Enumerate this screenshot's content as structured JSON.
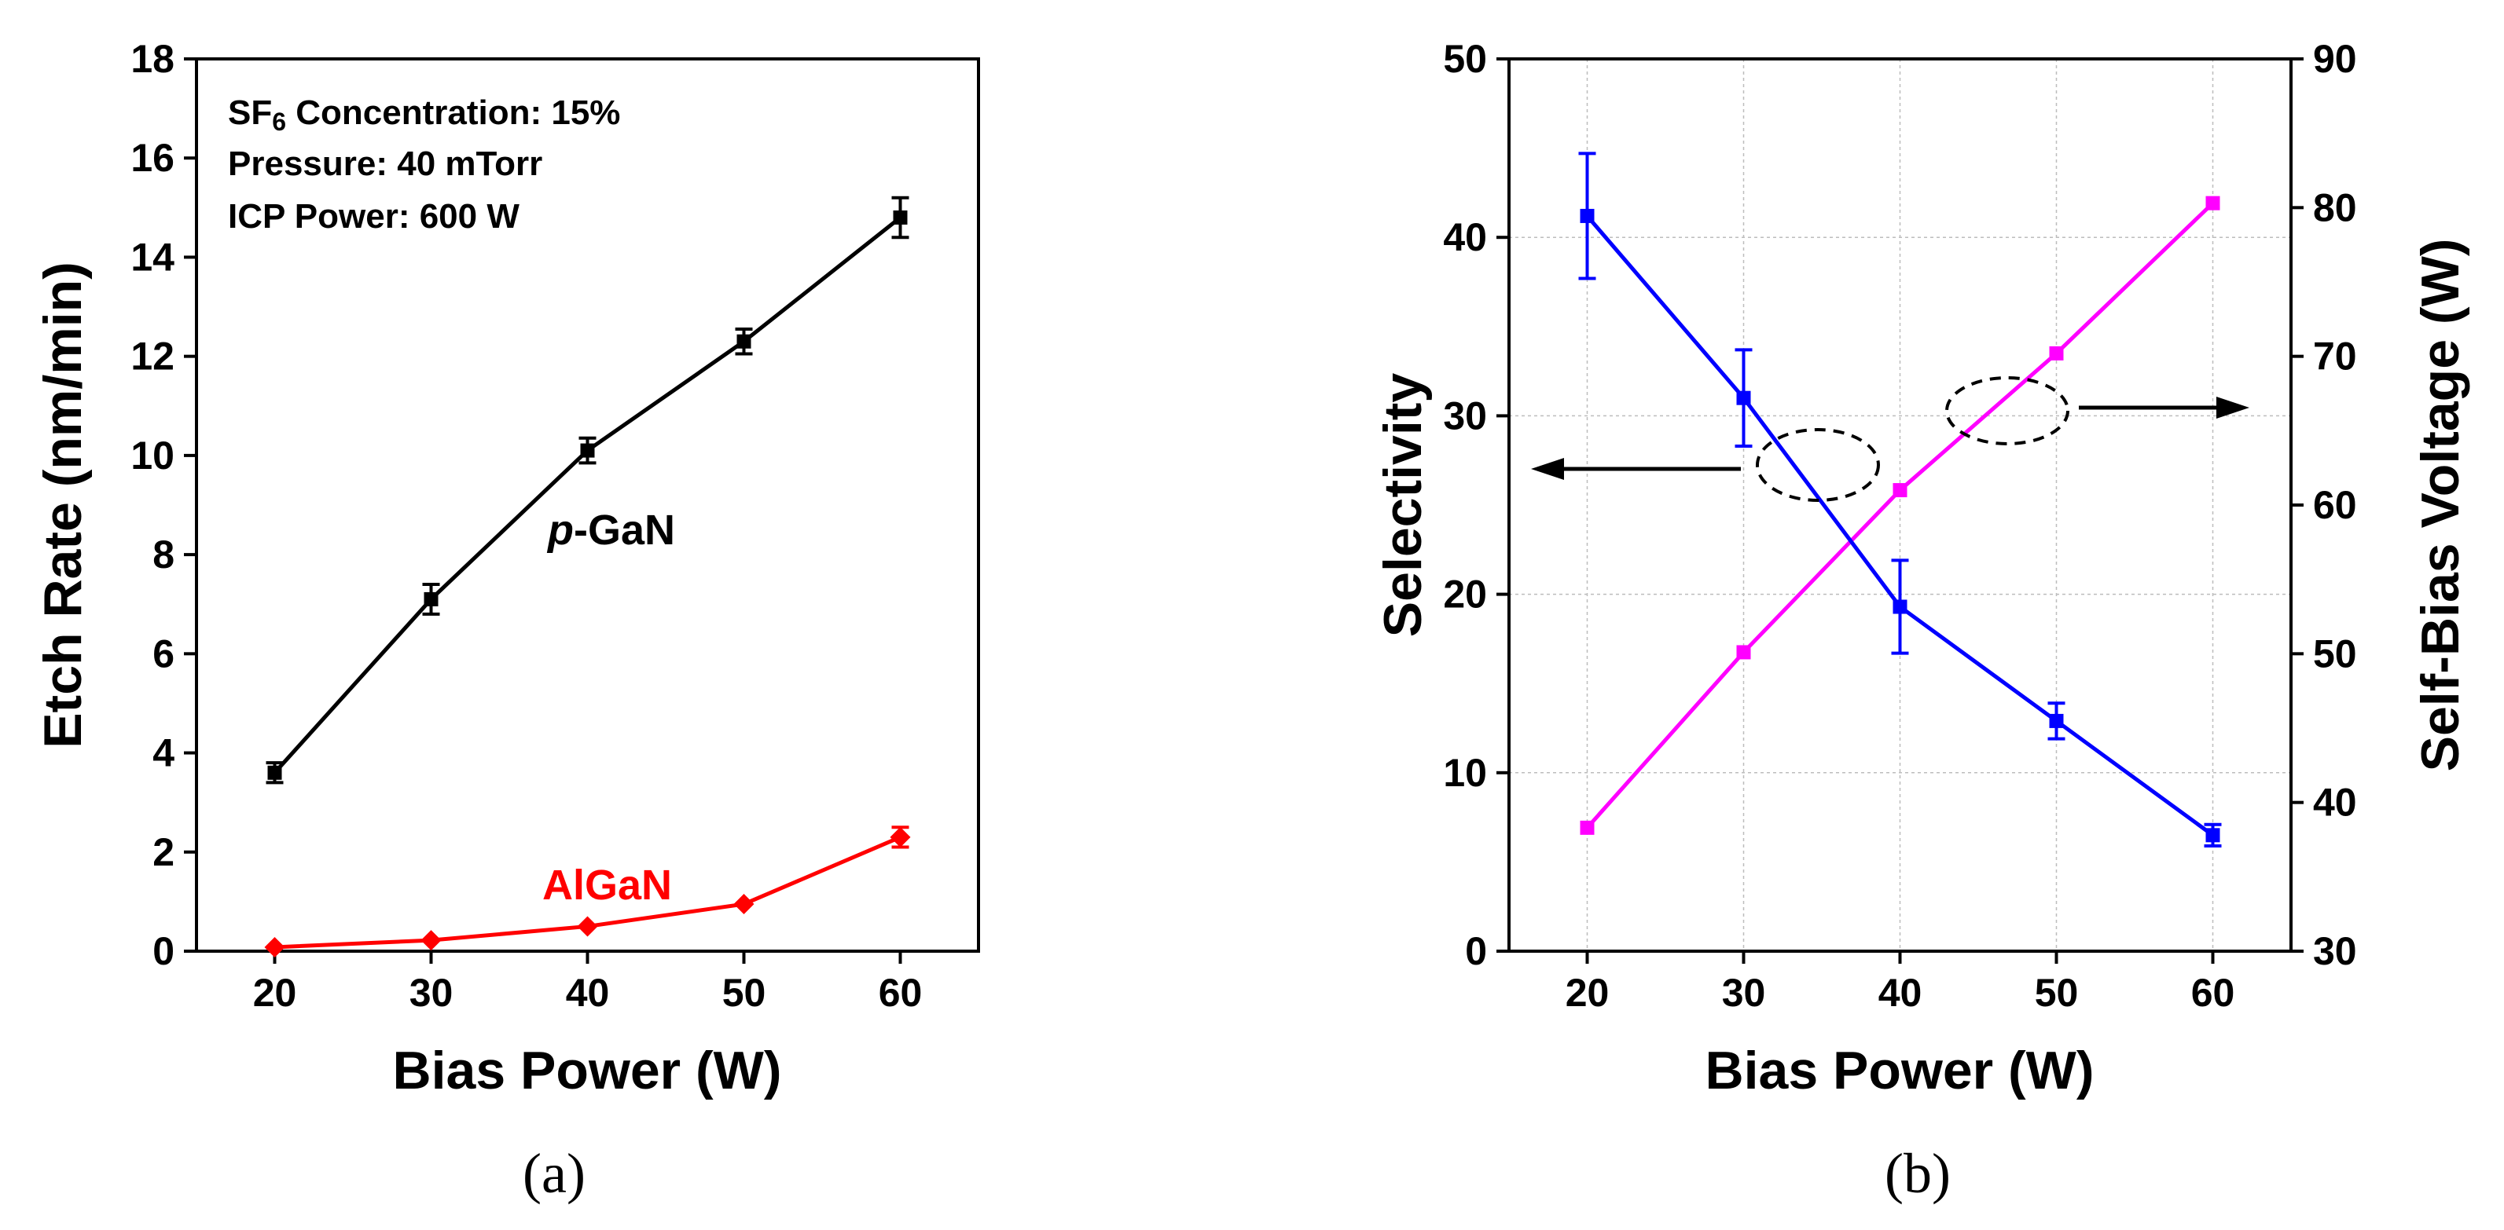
{
  "chart_data": [
    {
      "type": "line",
      "panel_label": "(a)",
      "xlabel": "Bias Power (W)",
      "ylabel": "Etch Rate (nm/min)",
      "xlim": [
        15,
        65
      ],
      "ylim": [
        0,
        18
      ],
      "xticks": [
        20,
        30,
        40,
        50,
        60
      ],
      "yticks": [
        0,
        2,
        4,
        6,
        8,
        10,
        12,
        14,
        16,
        18
      ],
      "grid": false,
      "annotations": {
        "sf6_prefix": "SF",
        "sf6_sub": "6",
        "sf6_suffix": " Concentration: 15%",
        "pressure": "Pressure: 40 mTorr",
        "icp": "ICP Power: 600 W"
      },
      "x": [
        20,
        30,
        40,
        50,
        60
      ],
      "series": [
        {
          "name_italic": "p",
          "name_rest": "-GaN",
          "color": "#000000",
          "marker": "square",
          "values": [
            3.6,
            7.1,
            10.1,
            12.3,
            14.8
          ],
          "errors": [
            0.2,
            0.3,
            0.25,
            0.25,
            0.4
          ]
        },
        {
          "name": "AlGaN",
          "color": "#ff0000",
          "marker": "diamond",
          "values": [
            0.08,
            0.22,
            0.5,
            0.95,
            2.3
          ],
          "errors": [
            0,
            0,
            0,
            0,
            0.2
          ]
        }
      ]
    },
    {
      "type": "line",
      "panel_label": "(b)",
      "xlabel": "Bias Power (W)",
      "ylabel_left": "Selectivity",
      "ylabel_right": "Self-Bias Voltage (W)",
      "xlim": [
        15,
        65
      ],
      "ylim_left": [
        0,
        50
      ],
      "ylim_right": [
        30,
        90
      ],
      "xticks": [
        20,
        30,
        40,
        50,
        60
      ],
      "yticks_left": [
        0,
        10,
        20,
        30,
        40,
        50
      ],
      "yticks_right": [
        30,
        40,
        50,
        60,
        70,
        80,
        90
      ],
      "grid": true,
      "x": [
        20,
        30,
        40,
        50,
        60
      ],
      "series": [
        {
          "name": "Selectivity",
          "axis": "left",
          "color": "#0000ff",
          "marker": "square",
          "values": [
            41.2,
            31.0,
            19.3,
            12.9,
            6.5
          ],
          "errors": [
            3.5,
            2.7,
            2.6,
            1.0,
            0.6
          ]
        },
        {
          "name": "Self-Bias Voltage",
          "axis": "right",
          "color": "#ff00ff",
          "marker": "square",
          "values": [
            38.3,
            50.1,
            61.0,
            70.2,
            80.3
          ],
          "errors": [
            0,
            0,
            0,
            0,
            0
          ]
        }
      ]
    }
  ]
}
